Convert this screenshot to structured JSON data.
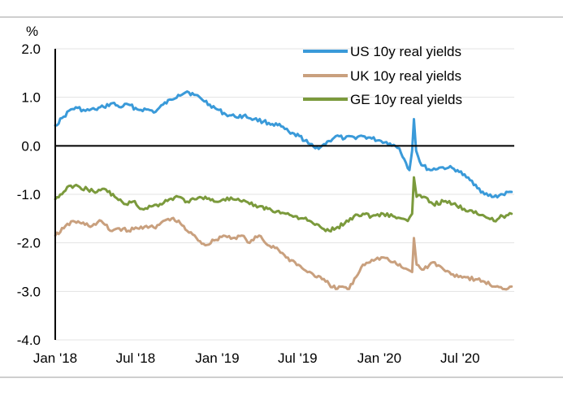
{
  "chart_data": {
    "type": "line",
    "title": "",
    "xlabel": "",
    "ylabel": "%",
    "ylim": [
      -4.0,
      2.0
    ],
    "xlim": [
      "2018-01-01",
      "2020-10-31"
    ],
    "grid": true,
    "legend_position": "top-right",
    "y_ticks": [
      "2.0",
      "1.0",
      "0.0",
      "-1.0",
      "-2.0",
      "-3.0",
      "-4.0"
    ],
    "x_ticks": [
      {
        "date": "2018-01-01",
        "label": "Jan '18"
      },
      {
        "date": "2018-07-01",
        "label": "Jul '18"
      },
      {
        "date": "2019-01-01",
        "label": "Jan '19"
      },
      {
        "date": "2019-07-01",
        "label": "Jul '19"
      },
      {
        "date": "2020-01-01",
        "label": "Jan '20"
      },
      {
        "date": "2020-07-01",
        "label": "Jul '20"
      }
    ],
    "series": [
      {
        "name": "US 10y real yields",
        "color": "#3a9ad9",
        "x": [
          "2018-01-01",
          "2018-01-20",
          "2018-02-05",
          "2018-02-20",
          "2018-03-10",
          "2018-04-01",
          "2018-04-20",
          "2018-05-10",
          "2018-05-25",
          "2018-06-15",
          "2018-07-05",
          "2018-07-25",
          "2018-08-15",
          "2018-09-01",
          "2018-09-20",
          "2018-10-05",
          "2018-10-25",
          "2018-11-10",
          "2018-11-25",
          "2018-12-15",
          "2019-01-01",
          "2019-01-20",
          "2019-02-10",
          "2019-03-01",
          "2019-03-25",
          "2019-04-15",
          "2019-05-05",
          "2019-05-25",
          "2019-06-15",
          "2019-07-05",
          "2019-07-25",
          "2019-08-10",
          "2019-08-25",
          "2019-09-10",
          "2019-09-25",
          "2019-10-15",
          "2019-11-05",
          "2019-11-25",
          "2019-12-15",
          "2020-01-05",
          "2020-01-25",
          "2020-02-15",
          "2020-03-01",
          "2020-03-09",
          "2020-03-15",
          "2020-03-19",
          "2020-03-24",
          "2020-04-05",
          "2020-04-25",
          "2020-05-15",
          "2020-06-05",
          "2020-06-25",
          "2020-07-15",
          "2020-08-05",
          "2020-08-25",
          "2020-09-15",
          "2020-10-05",
          "2020-10-25"
        ],
        "values": [
          0.42,
          0.6,
          0.75,
          0.78,
          0.72,
          0.75,
          0.8,
          0.88,
          0.8,
          0.85,
          0.75,
          0.75,
          0.7,
          0.85,
          0.95,
          1.05,
          1.12,
          1.05,
          0.98,
          0.85,
          0.75,
          0.65,
          0.6,
          0.62,
          0.55,
          0.5,
          0.45,
          0.4,
          0.25,
          0.2,
          0.05,
          -0.05,
          0.0,
          0.1,
          0.2,
          0.15,
          0.18,
          0.2,
          0.15,
          0.1,
          0.05,
          -0.05,
          -0.35,
          -0.5,
          -0.1,
          0.55,
          -0.1,
          -0.4,
          -0.5,
          -0.45,
          -0.45,
          -0.5,
          -0.65,
          -0.8,
          -1.0,
          -1.05,
          -1.0,
          -0.95
        ]
      },
      {
        "name": "UK 10y real yields",
        "color": "#c9a07e",
        "x": [
          "2018-01-01",
          "2018-01-20",
          "2018-02-10",
          "2018-03-01",
          "2018-03-25",
          "2018-04-15",
          "2018-05-05",
          "2018-05-25",
          "2018-06-15",
          "2018-07-05",
          "2018-07-25",
          "2018-08-15",
          "2018-09-01",
          "2018-09-20",
          "2018-10-10",
          "2018-10-25",
          "2018-11-15",
          "2018-12-05",
          "2018-12-25",
          "2019-01-15",
          "2019-02-05",
          "2019-02-25",
          "2019-03-15",
          "2019-04-05",
          "2019-04-25",
          "2019-05-15",
          "2019-06-05",
          "2019-06-25",
          "2019-07-15",
          "2019-08-05",
          "2019-08-25",
          "2019-09-10",
          "2019-09-25",
          "2019-10-10",
          "2019-10-25",
          "2019-11-10",
          "2019-11-25",
          "2019-12-15",
          "2020-01-10",
          "2020-02-01",
          "2020-02-20",
          "2020-03-05",
          "2020-03-15",
          "2020-03-19",
          "2020-03-25",
          "2020-04-10",
          "2020-05-01",
          "2020-05-25",
          "2020-06-15",
          "2020-07-10",
          "2020-08-05",
          "2020-08-25",
          "2020-09-15",
          "2020-10-05",
          "2020-10-25"
        ],
        "values": [
          -1.85,
          -1.7,
          -1.55,
          -1.6,
          -1.65,
          -1.55,
          -1.75,
          -1.7,
          -1.75,
          -1.7,
          -1.65,
          -1.7,
          -1.55,
          -1.5,
          -1.6,
          -1.75,
          -1.9,
          -2.05,
          -1.95,
          -1.85,
          -1.9,
          -1.85,
          -2.0,
          -1.85,
          -2.05,
          -2.1,
          -2.3,
          -2.4,
          -2.55,
          -2.65,
          -2.75,
          -2.85,
          -2.95,
          -2.9,
          -2.95,
          -2.7,
          -2.45,
          -2.35,
          -2.3,
          -2.4,
          -2.5,
          -2.55,
          -2.6,
          -1.9,
          -2.45,
          -2.55,
          -2.4,
          -2.55,
          -2.65,
          -2.7,
          -2.75,
          -2.8,
          -2.9,
          -2.95,
          -2.9
        ]
      },
      {
        "name": "GE 10y real yields",
        "color": "#7b9a3c",
        "x": [
          "2018-01-01",
          "2018-01-20",
          "2018-02-05",
          "2018-02-25",
          "2018-03-15",
          "2018-04-05",
          "2018-04-25",
          "2018-05-15",
          "2018-06-05",
          "2018-06-25",
          "2018-07-15",
          "2018-08-05",
          "2018-08-25",
          "2018-09-15",
          "2018-10-05",
          "2018-10-25",
          "2018-11-15",
          "2018-12-05",
          "2018-12-25",
          "2019-01-15",
          "2019-02-05",
          "2019-02-25",
          "2019-03-15",
          "2019-04-05",
          "2019-04-25",
          "2019-05-15",
          "2019-06-05",
          "2019-06-25",
          "2019-07-15",
          "2019-08-05",
          "2019-08-25",
          "2019-09-10",
          "2019-09-25",
          "2019-10-15",
          "2019-11-05",
          "2019-11-25",
          "2019-12-15",
          "2020-01-10",
          "2020-02-01",
          "2020-02-20",
          "2020-03-05",
          "2020-03-15",
          "2020-03-19",
          "2020-03-25",
          "2020-04-10",
          "2020-05-01",
          "2020-05-25",
          "2020-06-15",
          "2020-07-10",
          "2020-08-05",
          "2020-08-25",
          "2020-09-15",
          "2020-10-05",
          "2020-10-25"
        ],
        "values": [
          -1.1,
          -0.95,
          -0.82,
          -0.85,
          -0.9,
          -0.95,
          -0.9,
          -1.05,
          -1.2,
          -1.15,
          -1.3,
          -1.25,
          -1.2,
          -1.1,
          -1.05,
          -1.15,
          -1.1,
          -1.05,
          -1.15,
          -1.1,
          -1.1,
          -1.15,
          -1.2,
          -1.25,
          -1.3,
          -1.35,
          -1.4,
          -1.45,
          -1.5,
          -1.6,
          -1.7,
          -1.75,
          -1.7,
          -1.6,
          -1.45,
          -1.4,
          -1.45,
          -1.4,
          -1.45,
          -1.5,
          -1.55,
          -1.4,
          -0.65,
          -1.05,
          -1.05,
          -1.2,
          -1.15,
          -1.2,
          -1.3,
          -1.35,
          -1.45,
          -1.55,
          -1.45,
          -1.4
        ]
      }
    ]
  }
}
